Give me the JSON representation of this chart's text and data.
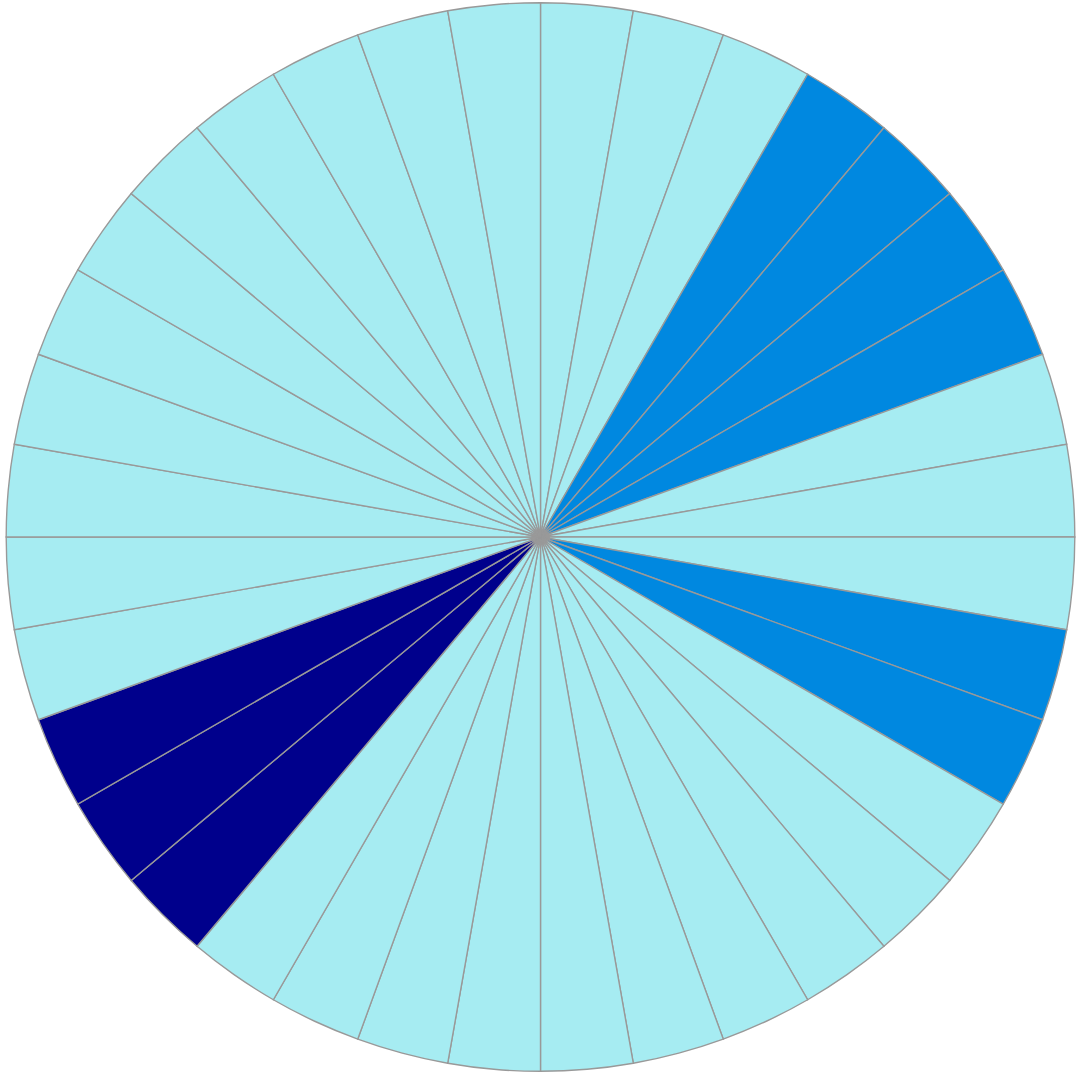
{
  "chart_data": {
    "type": "pie",
    "categories": [
      null,
      null,
      null,
      null,
      null,
      null,
      null,
      null,
      null,
      null,
      null,
      null,
      null,
      null,
      null,
      null,
      null,
      null,
      null,
      null,
      null,
      null,
      null,
      null,
      null,
      null,
      null,
      null,
      null,
      null,
      null,
      null,
      null,
      null,
      null,
      null
    ],
    "values": [
      2.78,
      2.78,
      2.78,
      2.78,
      2.78,
      2.78,
      2.78,
      2.78,
      2.78,
      2.78,
      2.78,
      2.78,
      2.78,
      2.78,
      2.78,
      2.78,
      2.78,
      2.78,
      2.78,
      2.78,
      2.78,
      2.78,
      2.78,
      2.78,
      2.78,
      2.78,
      2.78,
      2.78,
      2.78,
      2.78,
      2.78,
      2.78,
      2.78,
      2.78,
      2.78,
      2.78
    ],
    "colors": [
      "#a6ecf2",
      "#a6ecf2",
      "#a6ecf2",
      "#0088e0",
      "#0088e0",
      "#0088e0",
      "#0088e0",
      "#a6ecf2",
      "#a6ecf2",
      "#a6ecf2",
      "#0088e0",
      "#0088e0",
      "#a6ecf2",
      "#a6ecf2",
      "#a6ecf2",
      "#a6ecf2",
      "#a6ecf2",
      "#a6ecf2",
      "#a6ecf2",
      "#a6ecf2",
      "#a6ecf2",
      "#a6ecf2",
      "#00008c",
      "#00008c",
      "#00008c",
      "#a6ecf2",
      "#a6ecf2",
      "#a6ecf2",
      "#a6ecf2",
      "#a6ecf2",
      "#a6ecf2",
      "#a6ecf2",
      "#a6ecf2",
      "#a6ecf2",
      "#a6ecf2",
      "#a6ecf2"
    ]
  }
}
